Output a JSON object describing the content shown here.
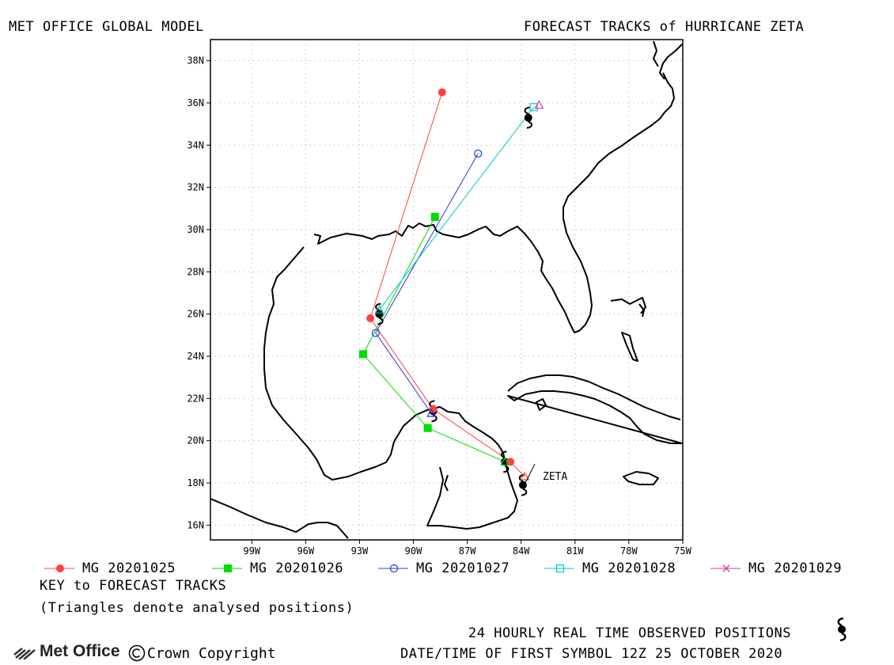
{
  "header": {
    "left_title": "MET OFFICE GLOBAL MODEL",
    "right_title": "FORECAST TRACKS of HURRICANE ZETA"
  },
  "map": {
    "lat_labels": [
      "38N",
      "36N",
      "34N",
      "32N",
      "30N",
      "28N",
      "26N",
      "24N",
      "22N",
      "20N",
      "18N",
      "16N"
    ],
    "lon_labels": [
      "99W",
      "96W",
      "93W",
      "90W",
      "87W",
      "84W",
      "81W",
      "78W",
      "75W"
    ],
    "storm_label": "ZETA"
  },
  "legend": {
    "items": [
      {
        "label": "MG 20201025",
        "color": "#ff4040",
        "marker": "filled-circle"
      },
      {
        "label": "MG 20201026",
        "color": "#00dd00",
        "marker": "filled-square"
      },
      {
        "label": "MG 20201027",
        "color": "#2a3bd6",
        "marker": "open-circle"
      },
      {
        "label": "MG 20201028",
        "color": "#00c8c8",
        "marker": "open-square"
      },
      {
        "label": "MG 20201029",
        "color": "#d23ca0",
        "marker": "cross"
      }
    ],
    "key_title": "KEY to FORECAST TRACKS",
    "key_note": "(Triangles denote analysed positions)"
  },
  "footer": {
    "observed_text": "24 HOURLY REAL TIME OBSERVED POSITIONS",
    "date_text": "DATE/TIME OF FIRST SYMBOL 12Z 25 OCTOBER 2020",
    "logo_text": "Met Office",
    "copyright_text": "Crown Copyright"
  },
  "tracks": [
    {
      "name": "MG 20201025",
      "color": "#ff4040",
      "points": [
        [
          18.3,
          -83.8
        ],
        [
          19.0,
          -84.6
        ],
        [
          21.5,
          -88.9
        ],
        [
          25.8,
          -92.4
        ],
        [
          36.5,
          -88.4
        ]
      ]
    },
    {
      "name": "MG 20201026",
      "color": "#00dd00",
      "points": [
        [
          19.0,
          -84.9
        ],
        [
          20.6,
          -89.2
        ],
        [
          24.1,
          -92.8
        ],
        [
          30.6,
          -88.8
        ]
      ]
    },
    {
      "name": "MG 20201027",
      "color": "#2a3bd6",
      "points": [
        [
          21.3,
          -89.0
        ],
        [
          25.1,
          -92.1
        ],
        [
          33.6,
          -86.4
        ]
      ]
    },
    {
      "name": "MG 20201028",
      "color": "#00c8c8",
      "points": [
        [
          26.2,
          -91.9
        ],
        [
          35.8,
          -83.3
        ]
      ]
    },
    {
      "name": "MG 20201029",
      "color": "#d23ca0",
      "points": [
        [
          35.9,
          -83.0
        ]
      ]
    }
  ],
  "observed": [
    [
      17.9,
      -83.9
    ],
    [
      19.0,
      -84.9
    ],
    [
      21.4,
      -88.9
    ],
    [
      26.0,
      -91.9
    ],
    [
      35.3,
      -83.6
    ]
  ]
}
